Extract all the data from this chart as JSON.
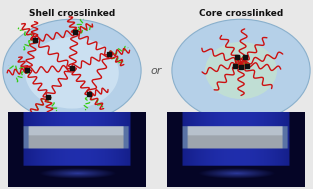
{
  "title_left": "Shell crosslinked",
  "title_right": "Core crosslinked",
  "or_text": "or",
  "bg_color": "#e8e8e8",
  "oval_fill_left": "#c5dff0",
  "oval_fill_right": "#c5dff0",
  "oval_center_fill": "#d8eef8",
  "oval_edge": "#7ab0cc",
  "node_color": "#111111",
  "red_color": "#cc1111",
  "green_color": "#33cc11",
  "title_fontsize": 6.5,
  "or_fontsize": 8,
  "fig_width": 3.13,
  "fig_height": 1.89,
  "dpi": 100
}
